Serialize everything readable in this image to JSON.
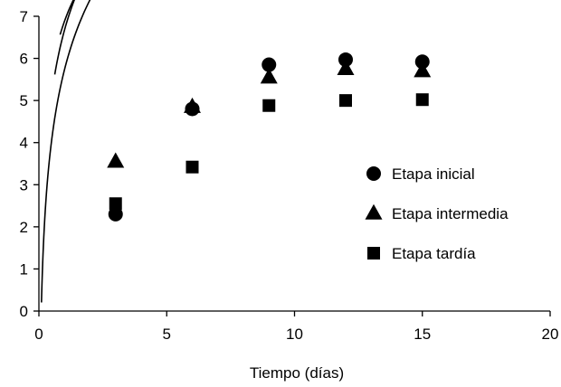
{
  "chart_data": {
    "type": "scatter",
    "title": "",
    "xlabel": "Tiempo (días)",
    "ylabel": "",
    "xlim": [
      0,
      20
    ],
    "ylim": [
      0,
      7
    ],
    "x_ticks": [
      0,
      5,
      10,
      15,
      20
    ],
    "y_ticks": [
      0,
      1,
      2,
      3,
      4,
      5,
      6,
      7
    ],
    "grid": false,
    "legend_position": "right",
    "series": [
      {
        "name": "Etapa inicial",
        "marker": "circle",
        "x": [
          3,
          6,
          9,
          12,
          15
        ],
        "y": [
          2.3,
          4.8,
          5.85,
          5.97,
          5.92
        ],
        "trend": {
          "a": 5.73,
          "b": 2.4,
          "x0": 0.1,
          "x1": 15
        }
      },
      {
        "name": "Etapa intermedia",
        "marker": "triangle",
        "x": [
          3,
          6,
          9,
          12,
          15
        ],
        "y": [
          3.55,
          4.85,
          5.55,
          5.75,
          5.7
        ],
        "trend": {
          "a": 6.67,
          "b": 2.2,
          "x0": 0.62,
          "x1": 15
        }
      },
      {
        "name": "Etapa tardía",
        "marker": "square",
        "x": [
          3,
          6,
          9,
          12,
          15
        ],
        "y": [
          2.55,
          3.42,
          4.88,
          5.0,
          5.02
        ],
        "trend": {
          "a": 6.88,
          "b": 1.7,
          "x0": 0.83,
          "x1": 15
        }
      }
    ]
  }
}
